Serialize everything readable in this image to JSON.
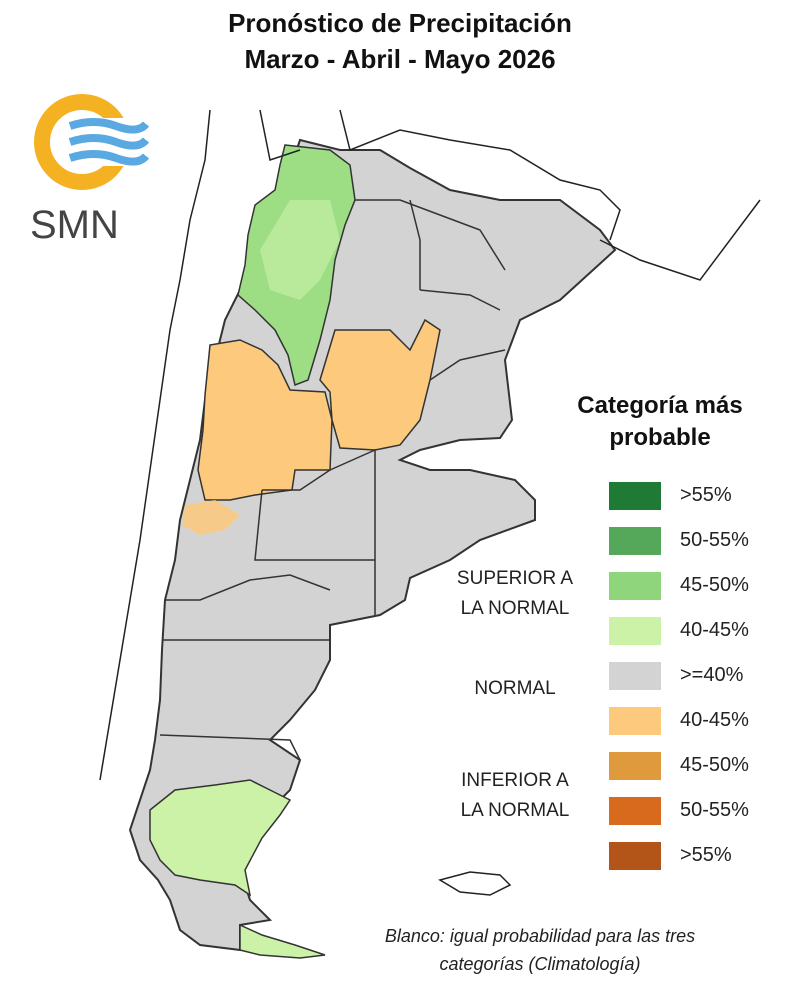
{
  "title": {
    "line1": "Pronóstico de Precipitación",
    "line2": "Marzo - Abril - Mayo 2026"
  },
  "logo": {
    "text": "SMN"
  },
  "legend": {
    "title_line1": "Categoría más",
    "title_line2": "probable",
    "items": [
      {
        "label": ">55%",
        "color": "#1f7a35"
      },
      {
        "label": "50-55%",
        "color": "#55a85a"
      },
      {
        "label": "45-50%",
        "color": "#8fd57b"
      },
      {
        "label": "40-45%",
        "color": "#ccf2a8"
      },
      {
        "label": ">=40%",
        "color": "#d3d3d3"
      },
      {
        "label": "40-45%",
        "color": "#fcc97d"
      },
      {
        "label": "45-50%",
        "color": "#e09a3e"
      },
      {
        "label": "50-55%",
        "color": "#d86a1e"
      },
      {
        "label": ">55%",
        "color": "#b35418"
      }
    ],
    "categories": {
      "superior": [
        "SUPERIOR A",
        "LA NORMAL"
      ],
      "normal": "NORMAL",
      "inferior": [
        "INFERIOR A",
        "LA NORMAL"
      ]
    }
  },
  "note": {
    "line1": "Blanco: igual probabilidad para las tres",
    "line2": "categorías (Climatología)"
  }
}
